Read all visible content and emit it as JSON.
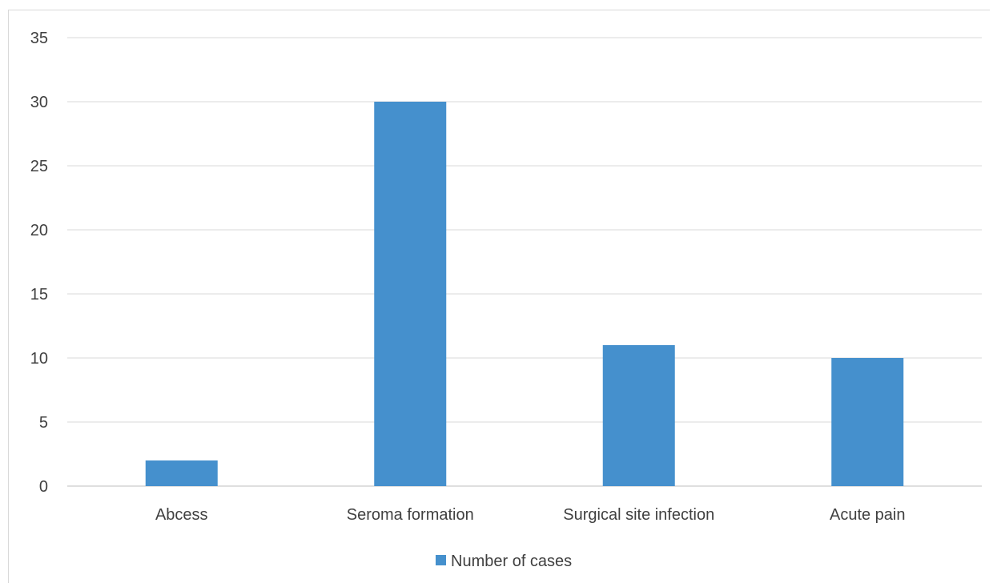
{
  "chart_data": {
    "type": "bar",
    "title": "",
    "xlabel": "",
    "ylabel": "",
    "categories": [
      "Abcess",
      "Seroma formation",
      "Surgical site infection",
      "Acute pain"
    ],
    "series": [
      {
        "name": "Number of cases",
        "values": [
          2,
          30,
          11,
          10
        ],
        "color": "#4590cd"
      }
    ],
    "ylim": [
      0,
      35
    ],
    "yticks": [
      0,
      5,
      10,
      15,
      20,
      25,
      30,
      35
    ],
    "grid": true,
    "gridColor": "#d9d9d9",
    "legend": {
      "position": "bottom",
      "entries": [
        "Number of cases"
      ]
    }
  }
}
